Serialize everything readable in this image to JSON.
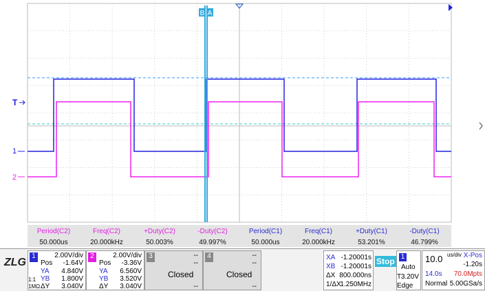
{
  "markers": {
    "cursor_b": "B",
    "cursor_a": "A",
    "trigger": "T",
    "ch1": "1",
    "ch2": "2"
  },
  "measurements": [
    {
      "name": "Period(C2)",
      "value": "50.000us"
    },
    {
      "name": "Freq(C2)",
      "value": "20.000kHz"
    },
    {
      "name": "+Duty(C2)",
      "value": "50.003%"
    },
    {
      "name": "-Duty(C2)",
      "value": "49.997%"
    },
    {
      "name": "Period(C1)",
      "value": "50.000us"
    },
    {
      "name": "Freq(C1)",
      "value": "20.000kHz"
    },
    {
      "name": "+Duty(C1)",
      "value": "53.201%"
    },
    {
      "name": "-Duty(C1)",
      "value": "46.799%"
    }
  ],
  "logo": "ZLG",
  "channels": [
    {
      "number": "1",
      "scale": "2.00V/div",
      "pos_label": "Pos",
      "pos": "-1.64V",
      "ya_label": "YA",
      "ya": "4.840V",
      "yb_label": "YB",
      "yb": "1.800V",
      "dy_label": "ΔY",
      "dy": "3.040V",
      "probe": "1:1",
      "impedance": "1MΩ"
    },
    {
      "number": "2",
      "scale": "2.00V/div",
      "pos_label": "Pos",
      "pos": "-3.36V",
      "ya_label": "YA",
      "ya": "6.560V",
      "yb_label": "YB",
      "yb": "3.520V",
      "dy_label": "ΔY",
      "dy": "3.040V"
    },
    {
      "number": "3",
      "scale": "--",
      "pos": "--",
      "status": "Closed",
      "dy": "--"
    },
    {
      "number": "4",
      "scale": "--",
      "pos": "--",
      "status": "Closed",
      "dy": "--"
    }
  ],
  "cursors": [
    {
      "label": "XA",
      "value": "-1.20001s"
    },
    {
      "label": "XB",
      "value": "-1.20001s"
    },
    {
      "label": "ΔX",
      "value": "800.000ns"
    },
    {
      "label": "1/ΔX",
      "value": "1.250MHz"
    }
  ],
  "run_state": "Stop",
  "trigger": {
    "source": "1",
    "mode": "Auto",
    "level_label": "T",
    "level": "3.20V",
    "type": "Edge"
  },
  "timebase": {
    "scale": "10.0",
    "unit": "us/div",
    "xpos_label": "X-Pos",
    "xpos": "-1.20s",
    "length": "14.0s",
    "depth": "70.0Mpts",
    "mode": "Normal",
    "rate": "5.00GSa/s"
  }
}
